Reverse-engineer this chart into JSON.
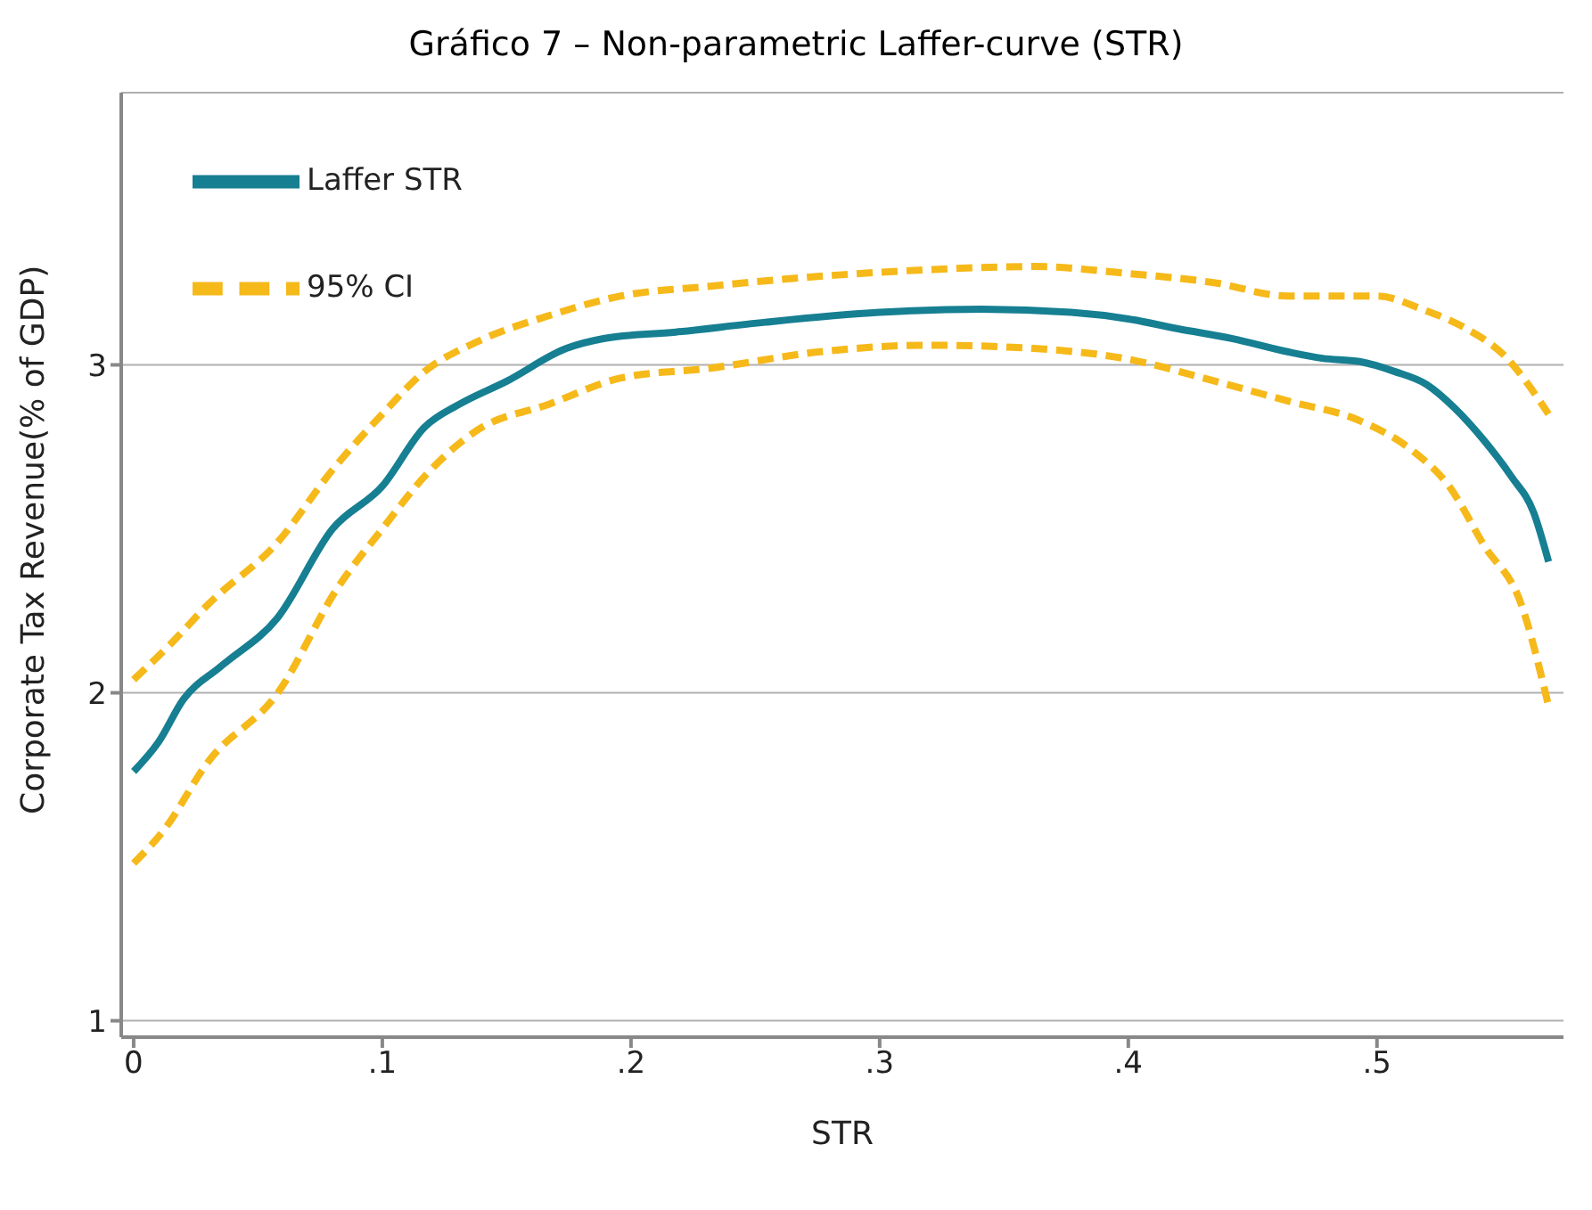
{
  "chart_data": {
    "type": "line",
    "title": "Gráfico 7 – Non-parametric Laffer-curve (STR)",
    "xlabel": "STR",
    "ylabel": "Corporate Tax Revenue(% of GDP)",
    "xlim": [
      -0.005,
      0.575
    ],
    "ylim": [
      0.95,
      3.83
    ],
    "xticks": [
      0,
      {
        "value": 0.1,
        "label": ".1"
      },
      {
        "value": 0.2,
        "label": ".2"
      },
      {
        "value": 0.3,
        "label": ".3"
      },
      {
        "value": 0.4,
        "label": ".4"
      },
      {
        "value": 0.5,
        "label": ".5"
      }
    ],
    "yticks": [
      1,
      2,
      3
    ],
    "grid": "y",
    "legend": "top left",
    "marker": "none",
    "series": [
      {
        "name": "Laffer STR",
        "color": "#167f92",
        "line_style": "solid",
        "x": [
          0,
          0.01,
          0.02,
          0.035,
          0.058,
          0.08,
          0.1,
          0.117,
          0.131,
          0.15,
          0.174,
          0.189,
          0.218,
          0.254,
          0.3,
          0.341,
          0.377,
          0.4,
          0.42,
          0.442,
          0.464,
          0.478,
          0.493,
          0.507,
          0.52,
          0.531,
          0.543,
          0.554,
          0.563,
          0.569
        ],
        "values": [
          1.76,
          1.85,
          1.98,
          2.08,
          2.23,
          2.5,
          2.63,
          2.81,
          2.88,
          2.95,
          3.05,
          3.08,
          3.1,
          3.13,
          3.16,
          3.17,
          3.16,
          3.14,
          3.11,
          3.08,
          3.04,
          3.02,
          3.01,
          2.98,
          2.94,
          2.87,
          2.77,
          2.66,
          2.55,
          2.4
        ]
      },
      {
        "name": "95% CI",
        "color": "#f6b91a",
        "line_style": "dashed",
        "x": [
          0,
          0.015,
          0.03,
          0.058,
          0.08,
          0.1,
          0.117,
          0.138,
          0.167,
          0.196,
          0.232,
          0.276,
          0.319,
          0.362,
          0.398,
          0.435,
          0.464,
          0.482,
          0.5,
          0.518,
          0.536,
          0.551,
          0.569
        ],
        "values": [
          2.04,
          2.15,
          2.27,
          2.46,
          2.68,
          2.85,
          2.98,
          3.07,
          3.15,
          3.21,
          3.24,
          3.27,
          3.29,
          3.3,
          3.28,
          3.25,
          3.21,
          3.21,
          3.21,
          3.17,
          3.11,
          3.03,
          2.85
        ]
      },
      {
        "color": "#f6b91a",
        "line_style": "dashed",
        "x": [
          0,
          0.012,
          0.03,
          0.058,
          0.082,
          0.1,
          0.117,
          0.138,
          0.167,
          0.196,
          0.232,
          0.276,
          0.319,
          0.362,
          0.398,
          0.435,
          0.464,
          0.493,
          0.514,
          0.529,
          0.543,
          0.558,
          0.569
        ],
        "values": [
          1.48,
          1.58,
          1.79,
          2.0,
          2.32,
          2.5,
          2.66,
          2.8,
          2.88,
          2.96,
          2.99,
          3.04,
          3.06,
          3.05,
          3.02,
          2.95,
          2.89,
          2.83,
          2.74,
          2.63,
          2.45,
          2.27,
          1.96
        ]
      }
    ]
  }
}
